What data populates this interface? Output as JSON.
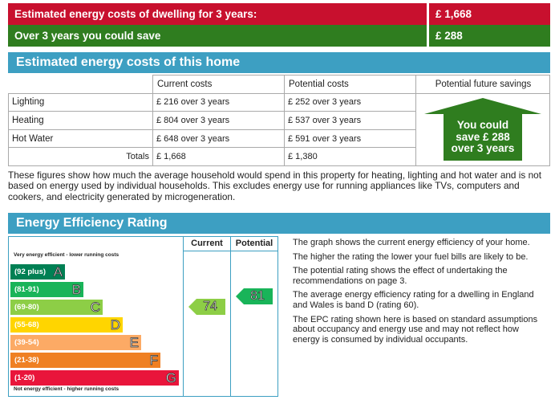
{
  "summary": {
    "row1_label": "Estimated energy costs of dwelling for 3 years:",
    "row1_value": "£ 1,668",
    "row2_label": "Over 3 years you could save",
    "row2_value": "£ 288"
  },
  "costs_section": {
    "title": "Estimated energy costs of this home",
    "headers": [
      "Current costs",
      "Potential costs",
      "Potential future savings"
    ],
    "rows": [
      {
        "label": "Lighting",
        "current": "£ 216 over 3 years",
        "potential": "£ 252 over 3 years"
      },
      {
        "label": "Heating",
        "current": "£ 804 over 3 years",
        "potential": "£ 537 over 3 years"
      },
      {
        "label": "Hot Water",
        "current": "£ 648 over 3 years",
        "potential": "£ 591 over 3 years"
      }
    ],
    "totals": {
      "label": "Totals",
      "current": "£ 1,668",
      "potential": "£ 1,380"
    },
    "savings_line1": "You could",
    "savings_line2": "save £ 288",
    "savings_line3": "over 3 years",
    "savings_color": "#2f7d1f"
  },
  "explanation": "These figures show how much the average household would spend in this property for heating, lighting and hot water and is not based on energy used by individual households. This excludes energy use for running appliances like TVs, computers and cookers, and electricity generated by microgeneration.",
  "eer": {
    "title": "Energy Efficiency Rating",
    "col_current": "Current",
    "col_potential": "Potential",
    "top_note": "Very energy efficient - lower running costs",
    "bottom_note": "Not energy efficient - higher running costs",
    "bands": [
      {
        "range": "(92 plus)",
        "letter": "A",
        "color": "#008054"
      },
      {
        "range": "(81-91)",
        "letter": "B",
        "color": "#19b459"
      },
      {
        "range": "(69-80)",
        "letter": "C",
        "color": "#8dce46"
      },
      {
        "range": "(55-68)",
        "letter": "D",
        "color": "#ffd500"
      },
      {
        "range": "(39-54)",
        "letter": "E",
        "color": "#fcaa65"
      },
      {
        "range": "(21-38)",
        "letter": "F",
        "color": "#ef8023"
      },
      {
        "range": "(1-20)",
        "letter": "G",
        "color": "#e9153b"
      }
    ],
    "current": "74",
    "current_color": "#8dce46",
    "potential": "81",
    "potential_color": "#19b459"
  },
  "notes": [
    "The graph shows the current energy efficiency of your home.",
    "The higher the rating the lower your fuel bills are likely to be.",
    "The potential rating shows the effect of undertaking the recommendations on page 3.",
    "The average energy efficiency rating for a dwelling in England and Wales is band D (rating 60).",
    "The EPC rating shown here is based on standard assumptions about occupancy and energy use and may not reflect how energy is consumed by individual occupants."
  ]
}
